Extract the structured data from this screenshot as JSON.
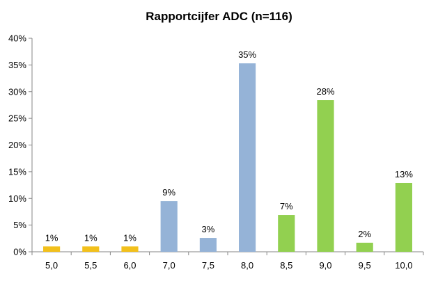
{
  "chart_data": {
    "type": "bar",
    "title": "Rapportcijfer ADC (n=116)",
    "xlabel": "",
    "ylabel": "",
    "categories": [
      "5,0",
      "5,5",
      "6,0",
      "7,0",
      "7,5",
      "8,0",
      "8,5",
      "9,0",
      "9,5",
      "10,0"
    ],
    "values": [
      1,
      1,
      1,
      9.5,
      2.6,
      35.3,
      6.9,
      28.4,
      1.7,
      12.9
    ],
    "data_labels": [
      "1%",
      "1%",
      "1%",
      "9%",
      "3%",
      "35%",
      "7%",
      "28%",
      "2%",
      "13%"
    ],
    "bar_colors": [
      "#F2C01B",
      "#F2C01B",
      "#F2C01B",
      "#95B3D7",
      "#95B3D7",
      "#95B3D7",
      "#92D050",
      "#92D050",
      "#92D050",
      "#92D050"
    ],
    "ylim": [
      0,
      40
    ],
    "yticks": [
      "0%",
      "5%",
      "10%",
      "15%",
      "20%",
      "25%",
      "30%",
      "35%",
      "40%"
    ],
    "grid": false,
    "legend": "none"
  }
}
